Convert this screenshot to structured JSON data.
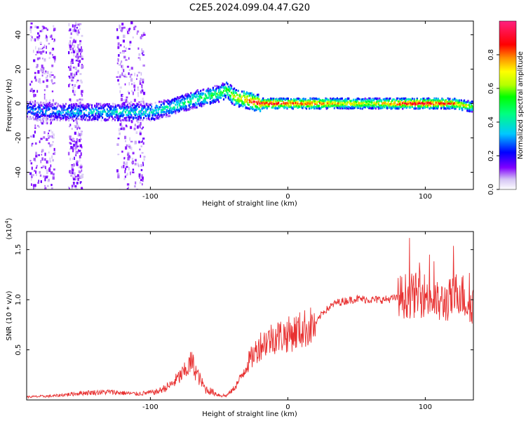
{
  "title": "C2E5.2024.099.04.47.G20",
  "chart_data": [
    {
      "type": "heatmap",
      "xlabel": "Height of straight line (km)",
      "ylabel": "Frequency (Hz)",
      "xlim": [
        -190,
        135
      ],
      "ylim": [
        -50,
        48
      ],
      "x_ticks": [
        -100,
        0,
        100
      ],
      "x_tick_labels": [
        "-100",
        "0",
        "100"
      ],
      "y_ticks": [
        -40,
        -20,
        0,
        20,
        40
      ],
      "y_tick_labels": [
        "-40",
        "-20",
        "0",
        "20",
        "40"
      ],
      "colorbar": {
        "label": "Normalized spectral amplitude",
        "range": [
          0,
          1
        ],
        "ticks": [
          0.0,
          0.2,
          0.4,
          0.6,
          0.8
        ],
        "tick_labels": [
          "0.0",
          "0.2",
          "0.4",
          "0.6",
          "0.8"
        ]
      },
      "ridge": {
        "x": [
          -190,
          -160,
          -140,
          -120,
          -100,
          -80,
          -70,
          -60,
          -50,
          -45,
          -40,
          -30,
          -20,
          0,
          20,
          40,
          60,
          80,
          100,
          120,
          135
        ],
        "frequency": [
          -4,
          -5,
          -5,
          -5,
          -5,
          -1,
          2,
          4,
          6,
          8,
          4,
          2,
          0,
          0,
          0,
          0,
          0,
          0,
          0,
          0,
          -2
        ],
        "amplitude": [
          0.3,
          0.35,
          0.35,
          0.4,
          0.4,
          0.45,
          0.5,
          0.5,
          0.55,
          0.55,
          0.7,
          0.85,
          0.95,
          0.9,
          0.85,
          0.75,
          0.7,
          0.9,
          0.95,
          0.85,
          0.6
        ]
      }
    },
    {
      "type": "line",
      "xlabel": "Height of straight line (km)",
      "ylabel": "SNR (10 * v/v)",
      "y_multiplier": "(x10",
      "y_multiplier_exp": "4",
      "xlim": [
        -190,
        135
      ],
      "ylim": [
        0,
        16800
      ],
      "x_ticks": [
        -100,
        0,
        100
      ],
      "x_tick_labels": [
        "-100",
        "0",
        "100"
      ],
      "y_ticks": [
        5000,
        10000,
        15000
      ],
      "y_tick_labels": [
        "0.5",
        "1.0",
        "1.5"
      ],
      "series": [
        {
          "name": "SNR",
          "color": "#e83030",
          "x": [
            -190,
            -170,
            -150,
            -130,
            -110,
            -95,
            -85,
            -75,
            -70,
            -65,
            -60,
            -50,
            -45,
            -40,
            -35,
            -30,
            -20,
            -10,
            0,
            10,
            20,
            25,
            35,
            50,
            60,
            70,
            80,
            85,
            90,
            100,
            110,
            120,
            125,
            130,
            135
          ],
          "y": [
            300,
            400,
            700,
            800,
            600,
            800,
            1500,
            2800,
            3800,
            2300,
            1100,
            500,
            400,
            1000,
            2000,
            3500,
            5500,
            6300,
            6500,
            7000,
            7500,
            8700,
            9700,
            10100,
            10000,
            10000,
            10200,
            10400,
            10400,
            10500,
            9600,
            10100,
            11000,
            9800,
            9600
          ]
        }
      ]
    }
  ]
}
